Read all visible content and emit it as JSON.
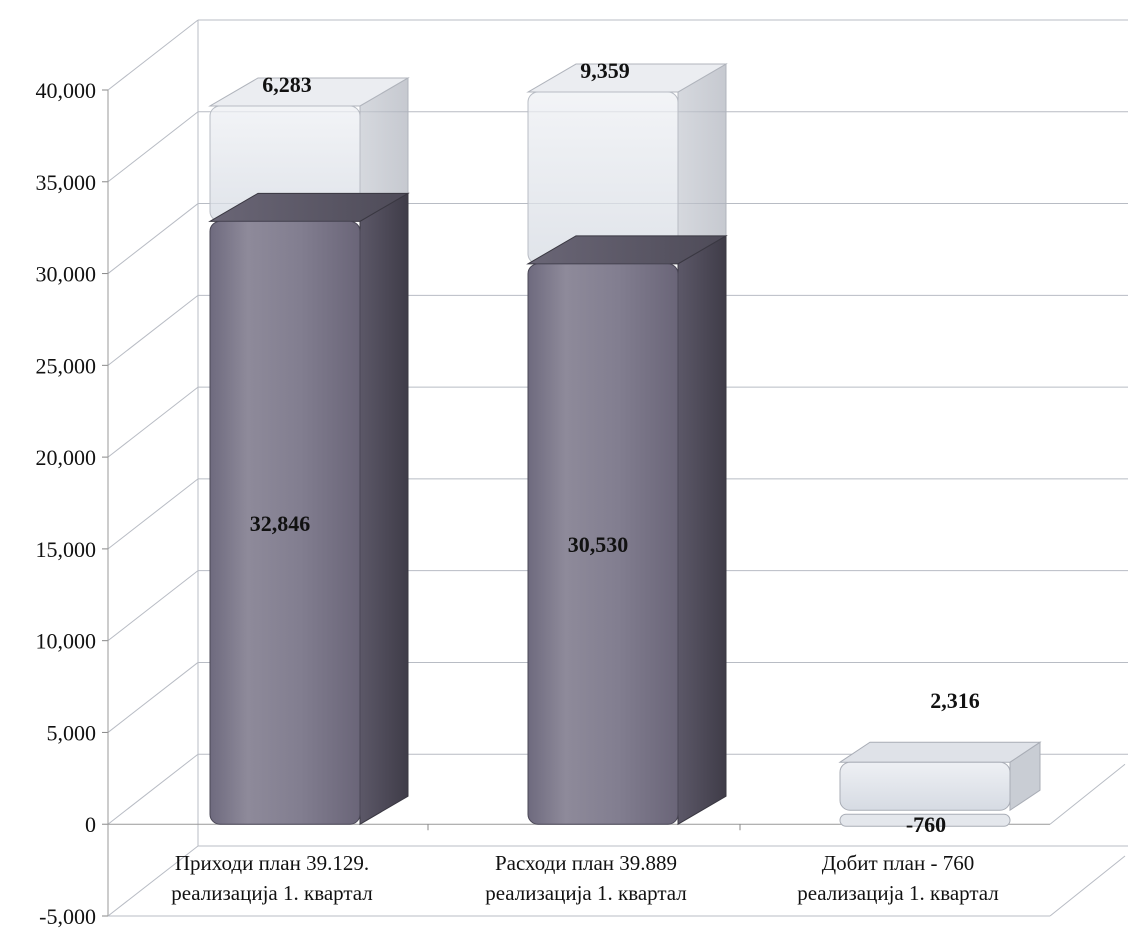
{
  "chart_data": {
    "type": "bar",
    "stacked": true,
    "three_d": true,
    "title": "",
    "xlabel": "",
    "ylabel": "",
    "ylim": [
      -5000,
      40000
    ],
    "y_ticks": [
      "-5,000",
      "0",
      "5,000",
      "10,000",
      "15,000",
      "20,000",
      "25,000",
      "30,000",
      "35,000",
      "40,000"
    ],
    "y_tick_values": [
      -5000,
      0,
      5000,
      10000,
      15000,
      20000,
      25000,
      30000,
      35000,
      40000
    ],
    "grid": true,
    "categories": [
      [
        "Приходи план 39.129.",
        "реализација 1. квартал"
      ],
      [
        "Расходи план 39.889",
        "реализација 1. квартал"
      ],
      [
        "Добит план - 760",
        "реализација 1. квартал"
      ]
    ],
    "series": [
      {
        "values": [
          32846,
          30530,
          -760
        ],
        "labels": [
          "32,846",
          "30,530",
          "-760"
        ],
        "color": "#7e7a8e"
      },
      {
        "values": [
          6283,
          9359,
          2316
        ],
        "labels": [
          "6,283",
          "9,359",
          "2,316"
        ],
        "color": "#dde2e8"
      }
    ]
  }
}
